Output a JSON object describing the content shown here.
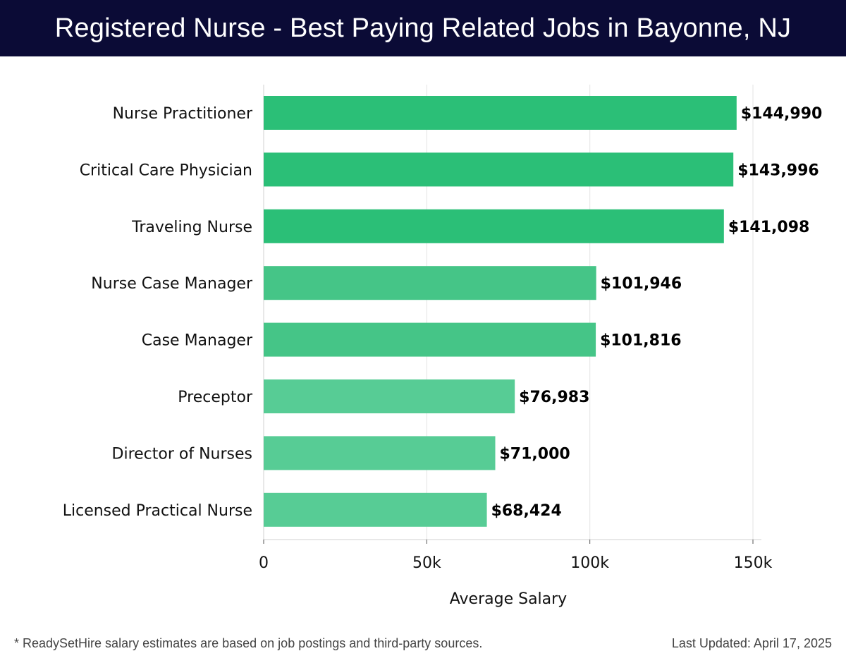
{
  "header": {
    "title": "Registered Nurse - Best Paying Related Jobs in Bayonne, NJ"
  },
  "footer": {
    "note": "* ReadySetHire salary estimates are based on job postings and third-party sources.",
    "updated": "Last Updated: April 17, 2025"
  },
  "colors": {
    "header_bg": "#0b0b36",
    "bar_dark": "#2bbf77",
    "bar_mid": "#45c587",
    "bar_light": "#57cc95"
  },
  "chart_data": {
    "type": "bar",
    "orientation": "horizontal",
    "title": "Registered Nurse - Best Paying Related Jobs in Bayonne, NJ",
    "xlabel": "Average Salary",
    "ylabel": "",
    "xlim": [
      0,
      150000
    ],
    "xticks": [
      0,
      50000,
      100000,
      150000
    ],
    "xtick_labels": [
      "0",
      "50k",
      "100k",
      "150k"
    ],
    "grid": true,
    "categories": [
      "Nurse Practitioner",
      "Critical Care Physician",
      "Traveling Nurse",
      "Nurse Case Manager",
      "Case Manager",
      "Preceptor",
      "Director of Nurses",
      "Licensed Practical Nurse"
    ],
    "values": [
      144990,
      143996,
      141098,
      101946,
      101816,
      76983,
      71000,
      68424
    ],
    "value_labels": [
      "$144,990",
      "$143,996",
      "$141,098",
      "$101,946",
      "$101,816",
      "$76,983",
      "$71,000",
      "$68,424"
    ],
    "bar_color_groups": [
      "dark",
      "dark",
      "dark",
      "mid",
      "mid",
      "light",
      "light",
      "light"
    ]
  }
}
